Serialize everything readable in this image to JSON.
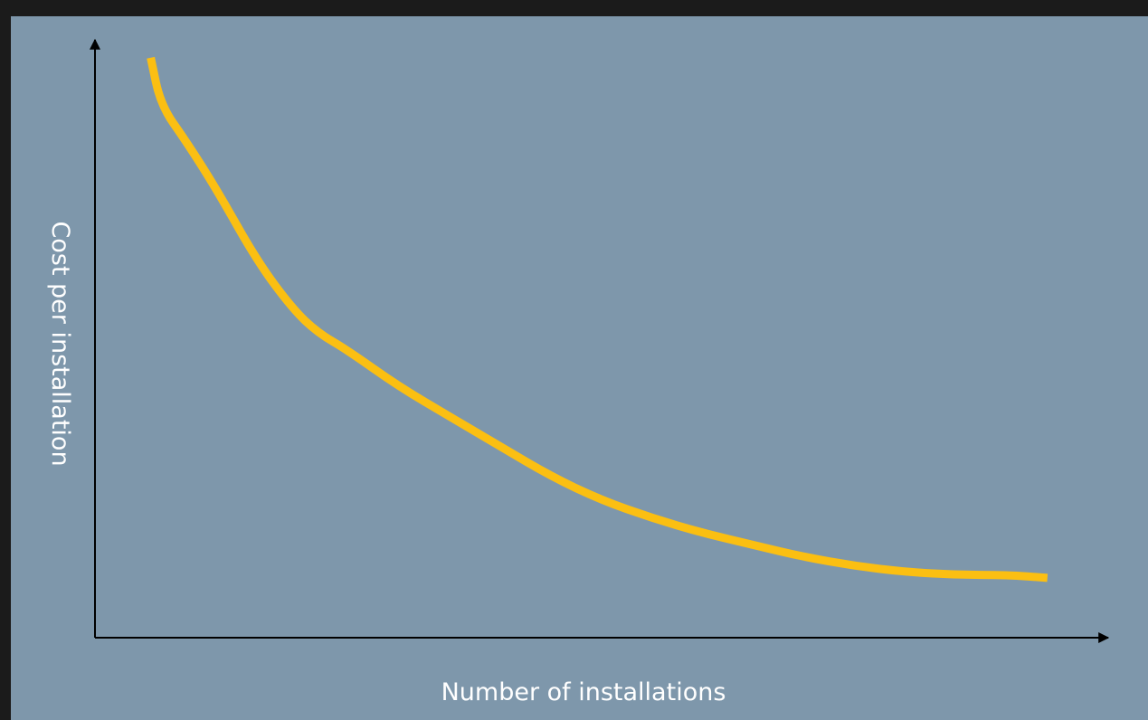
{
  "chart_data": {
    "type": "line",
    "title": "",
    "xlabel": "Number of installations",
    "ylabel": "Cost per installation",
    "xlim": [
      0,
      100
    ],
    "ylim": [
      0,
      100
    ],
    "grid": false,
    "legend": "none",
    "ticks": "none",
    "colors": {
      "background": "#1b1b1b",
      "panel": "#7e97ab",
      "axis": "#000000",
      "series": "#fbbf12",
      "label": "#ffffff"
    },
    "series": [
      {
        "values": [
          [
            5.5,
            97
          ],
          [
            6.5,
            89
          ],
          [
            9,
            83
          ],
          [
            12,
            75
          ],
          [
            16,
            63
          ],
          [
            19.5,
            55
          ],
          [
            22,
            51
          ],
          [
            25,
            48
          ],
          [
            30,
            42
          ],
          [
            35,
            37
          ],
          [
            40,
            32
          ],
          [
            45,
            27
          ],
          [
            50,
            23
          ],
          [
            55,
            20
          ],
          [
            60,
            17.5
          ],
          [
            65,
            15.5
          ],
          [
            70,
            13.5
          ],
          [
            75,
            12
          ],
          [
            80,
            11
          ],
          [
            85,
            10.5
          ],
          [
            90,
            10.5
          ],
          [
            94,
            10
          ]
        ]
      }
    ]
  }
}
